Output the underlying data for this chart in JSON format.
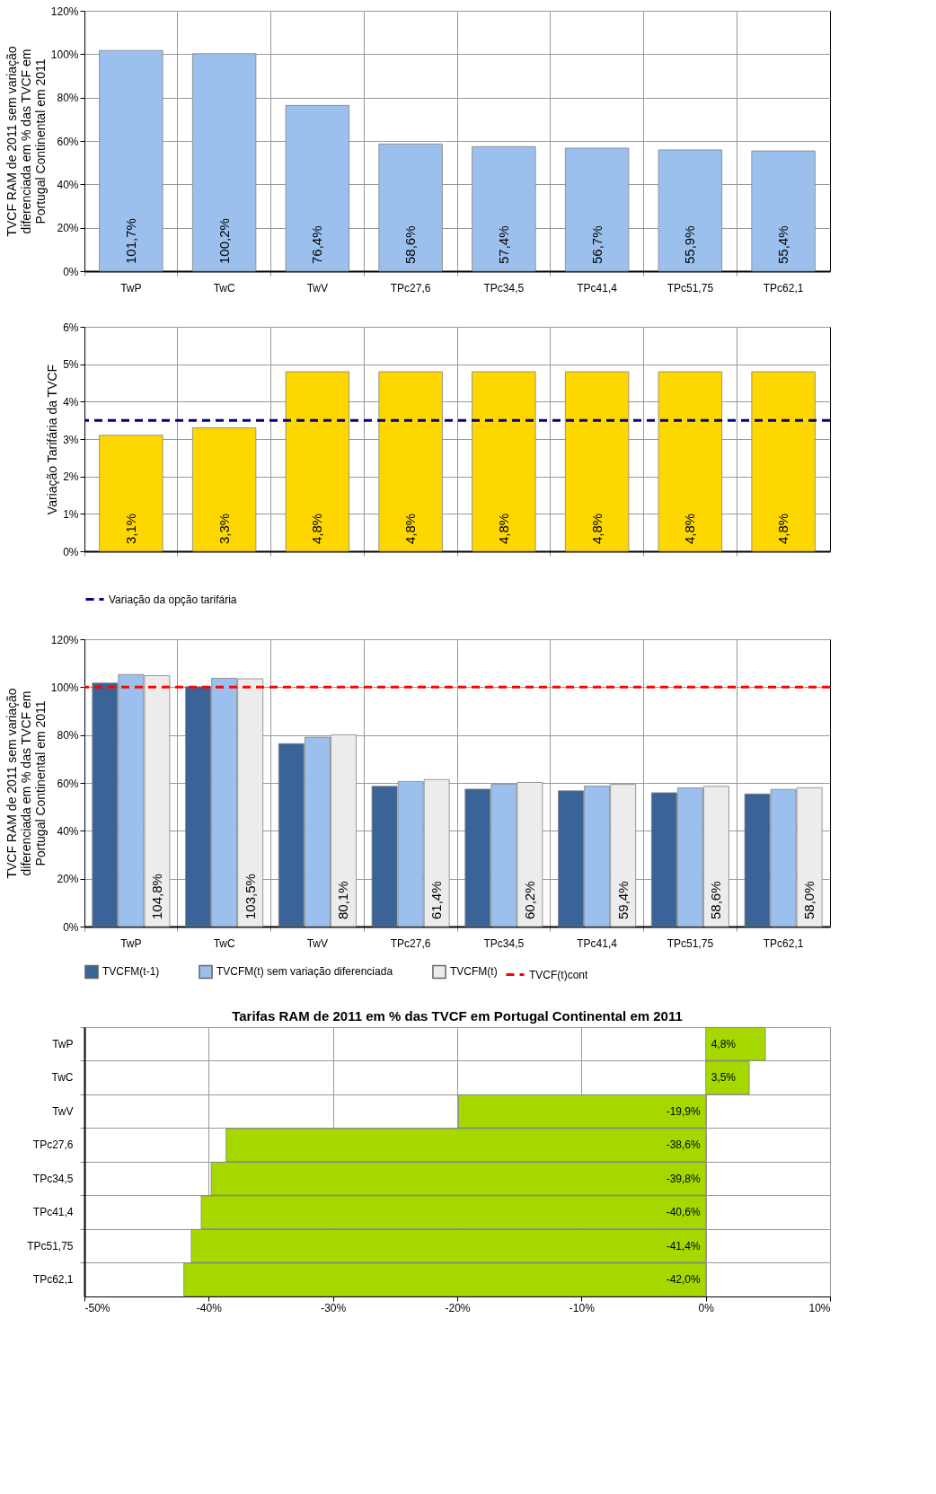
{
  "chart_data": [
    {
      "type": "bar",
      "ylabel": "TVCF RAM de 2011 sem variação diferenciada em % das TVCF em Portugal Continental em 2011",
      "categories": [
        "TwP",
        "TwC",
        "TwV",
        "TPc27,6",
        "TPc34,5",
        "TPc41,4",
        "TPc51,75",
        "TPc62,1"
      ],
      "values": [
        101.7,
        100.2,
        76.4,
        58.6,
        57.4,
        56.7,
        55.9,
        55.4
      ],
      "color": "#9cc0ee",
      "value_labels": [
        "101,7%",
        "100,2%",
        "76,4%",
        "58,6%",
        "57,4%",
        "56,7%",
        "55,9%",
        "55,4%"
      ],
      "ylim": [
        0,
        120
      ],
      "yticks": [
        {
          "value": 0,
          "label": "0%"
        },
        {
          "value": 20,
          "label": "20%"
        },
        {
          "value": 40,
          "label": "40%"
        },
        {
          "value": 60,
          "label": "60%"
        },
        {
          "value": 80,
          "label": "80%"
        },
        {
          "value": 100,
          "label": "100%"
        },
        {
          "value": 120,
          "label": "120%"
        }
      ],
      "grid": true
    },
    {
      "type": "bar",
      "ylabel": "Variação Tarifária da TVCF",
      "categories": [
        null,
        null,
        null,
        null,
        null,
        null,
        null,
        null
      ],
      "values": [
        3.1,
        3.3,
        4.8,
        4.8,
        4.8,
        4.8,
        4.8,
        4.8
      ],
      "color": "#ffd700",
      "value_labels": [
        "3,1%",
        "3,3%",
        "4,8%",
        "4,8%",
        "4,8%",
        "4,8%",
        "4,8%",
        "4,8%"
      ],
      "ylim": [
        0,
        6
      ],
      "yticks": [
        {
          "value": 0,
          "label": "0%"
        },
        {
          "value": 1,
          "label": "1%"
        },
        {
          "value": 2,
          "label": "2%"
        },
        {
          "value": 3,
          "label": "3%"
        },
        {
          "value": 4,
          "label": "4%"
        },
        {
          "value": 5,
          "label": "5%"
        },
        {
          "value": 6,
          "label": "6%"
        }
      ],
      "ref_lines": [
        {
          "axis": "y",
          "value": 3.5,
          "label": "Variação da opção tarifária",
          "color": "#000080",
          "line_style": "dashed"
        }
      ],
      "grid": true,
      "legend": "bottom"
    },
    {
      "type": "bar",
      "ylabel": "TVCF RAM de 2011 sem variação diferenciada em % das TVCF em Portugal Continental em 2011",
      "categories": [
        "TwP",
        "TwC",
        "TwV",
        "TPc27,6",
        "TPc34,5",
        "TPc41,4",
        "TPc51,75",
        "TPc62,1"
      ],
      "series": [
        {
          "name": "TVCFM(t-1)",
          "color": "#3a6498",
          "values": [
            101.7,
            100.2,
            76.4,
            58.6,
            57.4,
            56.7,
            55.9,
            55.4
          ]
        },
        {
          "name": "TVCFM(t) sem variação diferenciada",
          "color": "#9cc0ee",
          "values": [
            105.3,
            103.7,
            79.1,
            60.6,
            59.4,
            58.7,
            57.9,
            57.3
          ]
        },
        {
          "name": "TVCFM(t)",
          "color": "#ececec",
          "values": [
            104.8,
            103.5,
            80.1,
            61.4,
            60.2,
            59.4,
            58.6,
            58.0
          ],
          "value_labels": [
            "104,8%",
            "103,5%",
            "80,1%",
            "61,4%",
            "60,2%",
            "59,4%",
            "58,6%",
            "58,0%"
          ]
        }
      ],
      "ylim": [
        0,
        120
      ],
      "yticks": [
        {
          "value": 0,
          "label": "0%"
        },
        {
          "value": 20,
          "label": "20%"
        },
        {
          "value": 40,
          "label": "40%"
        },
        {
          "value": 60,
          "label": "60%"
        },
        {
          "value": 80,
          "label": "80%"
        },
        {
          "value": 100,
          "label": "100%"
        },
        {
          "value": 120,
          "label": "120%"
        }
      ],
      "ref_lines": [
        {
          "axis": "y",
          "value": 100,
          "label": "TVCF(t)cont",
          "color": "#ff0000",
          "line_style": "dashed"
        }
      ],
      "grid": true,
      "legend": "bottom"
    },
    {
      "type": "bar",
      "orientation": "horizontal",
      "title": "Tarifas RAM de 2011  em % das TVCF em Portugal Continental em 2011",
      "categories": [
        "TwP",
        "TwC",
        "TwV",
        "TPc27,6",
        "TPc34,5",
        "TPc41,4",
        "TPc51,75",
        "TPc62,1"
      ],
      "values": [
        4.8,
        3.5,
        -19.9,
        -38.6,
        -39.8,
        -40.6,
        -41.4,
        -42.0
      ],
      "color": "#a6d800",
      "value_labels": [
        "4,8%",
        "3,5%",
        "-19,9%",
        "-38,6%",
        "-39,8%",
        "-40,6%",
        "-41,4%",
        "-42,0%"
      ],
      "xlim": [
        -50,
        10
      ],
      "xticks": [
        {
          "value": -50,
          "label": "-50%"
        },
        {
          "value": -40,
          "label": "-40%"
        },
        {
          "value": -30,
          "label": "-30%"
        },
        {
          "value": -20,
          "label": "-20%"
        },
        {
          "value": -10,
          "label": "-10%"
        },
        {
          "value": 0,
          "label": "0%"
        },
        {
          "value": 10,
          "label": "10%"
        }
      ],
      "grid": true
    }
  ]
}
